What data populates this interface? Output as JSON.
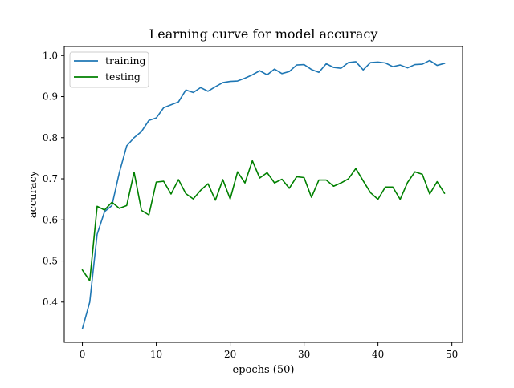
{
  "chart_data": {
    "type": "line",
    "title": "Learning curve for model accuracy",
    "xlabel": "epochs (50)",
    "ylabel": "accuracy",
    "xlim": [
      -2.45,
      51.45
    ],
    "ylim": [
      0.302,
      1.022
    ],
    "xticks": [
      0,
      10,
      20,
      30,
      40,
      50
    ],
    "yticks": [
      0.4,
      0.5,
      0.6,
      0.7,
      0.8,
      0.9,
      1.0
    ],
    "xtick_labels": [
      "0",
      "10",
      "20",
      "30",
      "40",
      "50"
    ],
    "ytick_labels": [
      "0.4",
      "0.5",
      "0.6",
      "0.7",
      "0.8",
      "0.9",
      "1.0"
    ],
    "grid": false,
    "legend_position": "top-left",
    "x": [
      0,
      1,
      2,
      3,
      4,
      5,
      6,
      7,
      8,
      9,
      10,
      11,
      12,
      13,
      14,
      15,
      16,
      17,
      18,
      19,
      20,
      21,
      22,
      23,
      24,
      25,
      26,
      27,
      28,
      29,
      30,
      31,
      32,
      33,
      34,
      35,
      36,
      37,
      38,
      39,
      40,
      41,
      42,
      43,
      44,
      45,
      46,
      47,
      48,
      49
    ],
    "series": [
      {
        "name": "training",
        "color": "#1f77b4",
        "values": [
          0.335,
          0.4,
          0.565,
          0.62,
          0.635,
          0.715,
          0.78,
          0.8,
          0.815,
          0.842,
          0.848,
          0.873,
          0.88,
          0.887,
          0.916,
          0.91,
          0.922,
          0.913,
          0.924,
          0.934,
          0.937,
          0.938,
          0.945,
          0.953,
          0.963,
          0.953,
          0.967,
          0.956,
          0.961,
          0.977,
          0.978,
          0.966,
          0.959,
          0.98,
          0.971,
          0.969,
          0.983,
          0.985,
          0.965,
          0.983,
          0.984,
          0.982,
          0.973,
          0.977,
          0.97,
          0.978,
          0.979,
          0.988,
          0.976,
          0.981
        ]
      },
      {
        "name": "testing",
        "color": "#008000",
        "values": [
          0.478,
          0.452,
          0.633,
          0.624,
          0.643,
          0.628,
          0.635,
          0.716,
          0.623,
          0.612,
          0.692,
          0.694,
          0.663,
          0.698,
          0.664,
          0.651,
          0.672,
          0.688,
          0.648,
          0.698,
          0.651,
          0.717,
          0.69,
          0.744,
          0.702,
          0.715,
          0.69,
          0.699,
          0.677,
          0.705,
          0.703,
          0.655,
          0.697,
          0.697,
          0.682,
          0.69,
          0.7,
          0.725,
          0.695,
          0.666,
          0.65,
          0.68,
          0.68,
          0.65,
          0.691,
          0.717,
          0.711,
          0.663,
          0.693,
          0.665
        ]
      }
    ]
  }
}
